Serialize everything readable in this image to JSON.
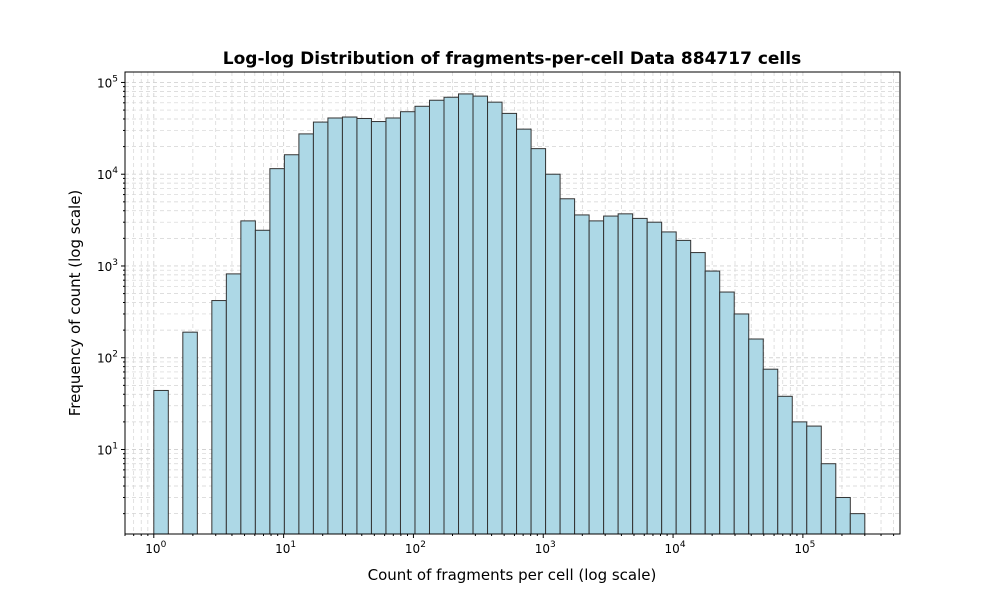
{
  "chart_data": {
    "type": "bar",
    "title": "Log-log Distribution of fragments-per-cell Data 884717 cells",
    "xlabel": "Count of fragments per cell (log scale)",
    "ylabel": "Frequency of count (log scale)",
    "xscale": "log",
    "yscale": "log",
    "xlim": [
      0.6,
      560000
    ],
    "ylim": [
      1.2,
      130000
    ],
    "grid": true,
    "bar_color": "#add8e6",
    "edge_color": "#333333",
    "grid_color": "#d3d3d3",
    "x_ticks": [
      {
        "base": "10",
        "exp": "0",
        "value": 1
      },
      {
        "base": "10",
        "exp": "1",
        "value": 10
      },
      {
        "base": "10",
        "exp": "2",
        "value": 100
      },
      {
        "base": "10",
        "exp": "3",
        "value": 1000
      },
      {
        "base": "10",
        "exp": "4",
        "value": 10000
      },
      {
        "base": "10",
        "exp": "5",
        "value": 100000
      }
    ],
    "y_ticks": [
      {
        "base": "10",
        "exp": "1",
        "value": 10
      },
      {
        "base": "10",
        "exp": "2",
        "value": 100
      },
      {
        "base": "10",
        "exp": "3",
        "value": 1000
      },
      {
        "base": "10",
        "exp": "4",
        "value": 10000
      },
      {
        "base": "10",
        "exp": "5",
        "value": 100000
      }
    ],
    "bins": {
      "start": 1,
      "end": 300000,
      "count": 49
    },
    "values": [
      44,
      0,
      190,
      0,
      420,
      820,
      3100,
      2450,
      11500,
      16300,
      27500,
      37000,
      41000,
      42000,
      40500,
      37500,
      41000,
      48000,
      55000,
      64000,
      69000,
      75000,
      71000,
      61000,
      46000,
      31000,
      19000,
      10000,
      5400,
      3600,
      3100,
      3500,
      3700,
      3300,
      3000,
      2350,
      1900,
      1400,
      880,
      520,
      300,
      160,
      75,
      38,
      20,
      18,
      7,
      3,
      2
    ]
  }
}
